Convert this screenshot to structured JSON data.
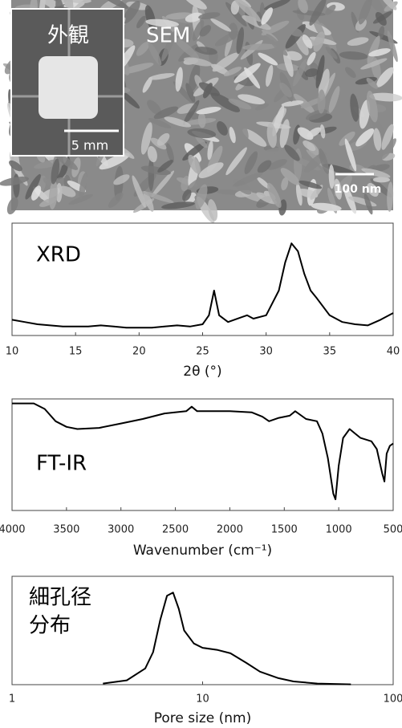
{
  "image_panel": {
    "inset_label": "外観",
    "label": "SEM",
    "inset_scale": "5 mm",
    "scale": "100 nm"
  },
  "chart_data": [
    {
      "type": "line",
      "title": "XRD",
      "xlabel": "2θ (°)",
      "color": "#000000",
      "x": [
        10,
        11,
        12,
        13,
        14,
        15,
        16,
        17,
        18,
        19,
        20,
        21,
        22,
        23,
        24,
        25,
        25.5,
        25.9,
        26.3,
        27,
        28,
        28.5,
        29,
        30,
        31,
        31.5,
        32,
        32.5,
        33,
        33.5,
        34,
        35,
        36,
        37,
        38,
        39,
        40
      ],
      "values": [
        14,
        12,
        10,
        9,
        8,
        8,
        8,
        9,
        8,
        7,
        7,
        7,
        8,
        9,
        8,
        10,
        18,
        40,
        18,
        12,
        16,
        18,
        15,
        18,
        40,
        65,
        82,
        75,
        55,
        40,
        33,
        18,
        12,
        10,
        9,
        14,
        20
      ],
      "xlim": [
        10,
        40
      ],
      "ylim": [
        0,
        100
      ],
      "xticks": [
        10,
        15,
        20,
        25,
        30,
        35,
        40
      ]
    },
    {
      "type": "line",
      "title": "FT-IR",
      "xlabel": "Wavenumber (cm⁻¹)",
      "color": "#000000",
      "x": [
        4000,
        3800,
        3700,
        3600,
        3500,
        3400,
        3200,
        3000,
        2800,
        2600,
        2400,
        2350,
        2300,
        2000,
        1800,
        1700,
        1640,
        1550,
        1450,
        1400,
        1300,
        1200,
        1150,
        1100,
        1050,
        1030,
        1000,
        960,
        900,
        850,
        800,
        700,
        650,
        600,
        580,
        560,
        530,
        500
      ],
      "values": [
        96,
        96,
        91,
        80,
        75,
        73,
        74,
        78,
        82,
        87,
        89,
        93,
        89,
        89,
        88,
        84,
        80,
        83,
        85,
        89,
        82,
        80,
        69,
        47,
        15,
        10,
        40,
        65,
        73,
        69,
        65,
        62,
        55,
        33,
        26,
        51,
        58,
        60
      ],
      "xlim": [
        4000,
        500
      ],
      "ylim": [
        0,
        100
      ],
      "xticks": [
        4000,
        3500,
        3000,
        2500,
        2000,
        1500,
        1000,
        500
      ]
    },
    {
      "type": "line",
      "title": [
        "細孔径",
        "分布"
      ],
      "xlabel": "Pore size (nm)",
      "color": "#000000",
      "xscale": "log",
      "x": [
        3,
        4,
        5,
        5.5,
        6,
        6.5,
        7,
        7.5,
        8,
        9,
        10,
        12,
        14,
        17,
        20,
        25,
        30,
        40,
        60
      ],
      "values": [
        1,
        4,
        15,
        30,
        60,
        82,
        85,
        70,
        50,
        38,
        34,
        32,
        29,
        20,
        12,
        6,
        3,
        1,
        0.3
      ],
      "xlim": [
        1,
        100
      ],
      "ylim": [
        0,
        100
      ],
      "xticks": [
        1,
        10,
        100
      ]
    }
  ]
}
